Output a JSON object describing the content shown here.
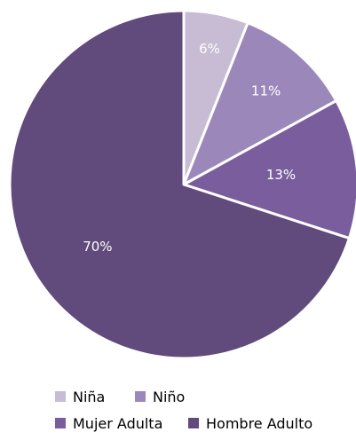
{
  "chart_data": {
    "type": "pie",
    "categories": [
      "Niña",
      "Niño",
      "Mujer Adulta",
      "Hombre Adulto"
    ],
    "values": [
      6,
      11,
      13,
      70
    ],
    "data_labels": [
      "6%",
      "11%",
      "13%",
      "70%"
    ],
    "colors": [
      "#c7bcd4",
      "#9c87ba",
      "#7a5d9c",
      "#614a7c"
    ],
    "start_angle_deg": 0,
    "direction": "clockwise",
    "legend_position": "bottom"
  },
  "legend": {
    "items": [
      {
        "label": "Niña",
        "color": "#c7bcd4"
      },
      {
        "label": "Niño",
        "color": "#9c87ba"
      },
      {
        "label": "Mujer Adulta",
        "color": "#7a5d9c"
      },
      {
        "label": "Hombre Adulto",
        "color": "#614a7c"
      }
    ]
  }
}
